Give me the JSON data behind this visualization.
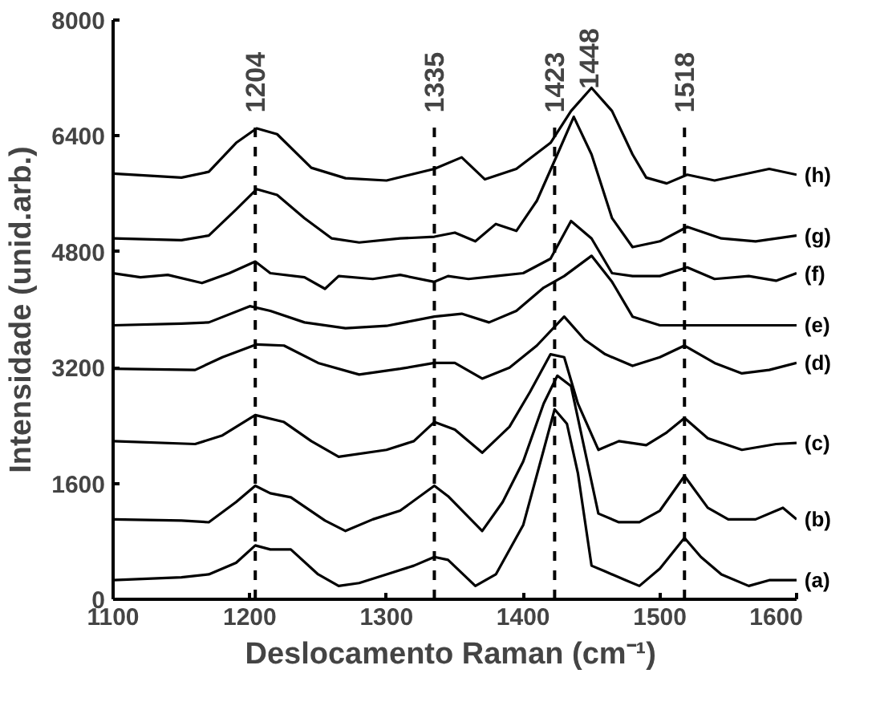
{
  "chart_data": {
    "type": "line",
    "xlabel": "Deslocamento Raman  (cm⁻¹)",
    "ylabel": "Intensidade (unid.arb.)",
    "xlim": [
      1100,
      1600
    ],
    "ylim": [
      0,
      8000
    ],
    "xticks": [
      1100,
      1200,
      1300,
      1400,
      1500,
      1600
    ],
    "yticks": [
      0,
      1600,
      3200,
      4800,
      6400,
      8000
    ],
    "grid": false,
    "line_style": "solid",
    "series": [
      {
        "name": "(a)",
        "color": "#000000",
        "x": [
          1100,
          1150,
          1170,
          1190,
          1204,
          1215,
          1230,
          1250,
          1265,
          1280,
          1300,
          1320,
          1335,
          1345,
          1365,
          1380,
          1400,
          1415,
          1423,
          1432,
          1440,
          1450,
          1460,
          1475,
          1485,
          1500,
          1518,
          1530,
          1545,
          1565,
          1580,
          1600
        ],
        "values": [
          264,
          304,
          344,
          504,
          744,
          688,
          688,
          344,
          184,
          224,
          344,
          464,
          584,
          544,
          184,
          344,
          1024,
          2064,
          2624,
          2424,
          1744,
          464,
          384,
          264,
          184,
          424,
          848,
          584,
          344,
          184,
          264,
          264
        ]
      },
      {
        "name": "(b)",
        "color": "#000000",
        "x": [
          1100,
          1150,
          1170,
          1190,
          1204,
          1215,
          1230,
          1255,
          1270,
          1290,
          1310,
          1335,
          1345,
          1370,
          1385,
          1400,
          1415,
          1425,
          1435,
          1445,
          1455,
          1470,
          1485,
          1500,
          1518,
          1535,
          1550,
          1570,
          1590,
          1600
        ],
        "values": [
          1104,
          1088,
          1064,
          1344,
          1568,
          1464,
          1408,
          1088,
          944,
          1104,
          1224,
          1568,
          1424,
          944,
          1344,
          1904,
          2704,
          3088,
          2944,
          2064,
          1184,
          1064,
          1064,
          1224,
          1704,
          1264,
          1104,
          1104,
          1264,
          1104
        ]
      },
      {
        "name": "(c)",
        "color": "#000000",
        "x": [
          1100,
          1160,
          1180,
          1204,
          1225,
          1245,
          1265,
          1300,
          1320,
          1335,
          1350,
          1370,
          1390,
          1405,
          1420,
          1430,
          1440,
          1455,
          1470,
          1490,
          1505,
          1518,
          1535,
          1560,
          1585,
          1600
        ],
        "values": [
          2184,
          2144,
          2264,
          2544,
          2448,
          2184,
          1968,
          2064,
          2184,
          2448,
          2344,
          2024,
          2384,
          2864,
          3384,
          3344,
          2704,
          2064,
          2184,
          2128,
          2304,
          2504,
          2224,
          2064,
          2144,
          2160
        ]
      },
      {
        "name": "(d)",
        "color": "#000000",
        "x": [
          1100,
          1160,
          1180,
          1205,
          1225,
          1250,
          1280,
          1310,
          1335,
          1350,
          1370,
          1390,
          1410,
          1430,
          1445,
          1460,
          1480,
          1500,
          1518,
          1540,
          1560,
          1580,
          1600
        ],
        "values": [
          3184,
          3168,
          3344,
          3520,
          3504,
          3264,
          3104,
          3184,
          3264,
          3264,
          3048,
          3200,
          3504,
          3904,
          3584,
          3384,
          3224,
          3344,
          3504,
          3264,
          3120,
          3168,
          3264
        ]
      },
      {
        "name": "(e)",
        "color": "#000000",
        "x": [
          1100,
          1150,
          1170,
          1200,
          1215,
          1240,
          1270,
          1300,
          1335,
          1355,
          1375,
          1395,
          1415,
          1430,
          1450,
          1465,
          1480,
          1500,
          1520,
          1560,
          1600
        ],
        "values": [
          3784,
          3808,
          3824,
          4048,
          3984,
          3824,
          3744,
          3776,
          3904,
          3944,
          3824,
          3984,
          4304,
          4464,
          4744,
          4384,
          3904,
          3784,
          3784,
          3784,
          3784
        ]
      },
      {
        "name": "(f)",
        "color": "#000000",
        "x": [
          1100,
          1120,
          1140,
          1165,
          1185,
          1204,
          1215,
          1240,
          1255,
          1265,
          1290,
          1310,
          1335,
          1345,
          1360,
          1380,
          1400,
          1420,
          1435,
          1450,
          1465,
          1480,
          1500,
          1520,
          1540,
          1565,
          1585,
          1600
        ],
        "values": [
          4504,
          4448,
          4480,
          4368,
          4504,
          4664,
          4504,
          4448,
          4288,
          4464,
          4424,
          4480,
          4384,
          4464,
          4424,
          4464,
          4504,
          4704,
          5224,
          4984,
          4504,
          4464,
          4464,
          4584,
          4424,
          4464,
          4400,
          4504
        ]
      },
      {
        "name": "(g)",
        "color": "#000000",
        "x": [
          1100,
          1150,
          1170,
          1190,
          1205,
          1220,
          1240,
          1260,
          1280,
          1310,
          1335,
          1350,
          1365,
          1380,
          1395,
          1410,
          1425,
          1437,
          1450,
          1465,
          1480,
          1500,
          1520,
          1545,
          1570,
          1600
        ],
        "values": [
          4984,
          4960,
          5024,
          5384,
          5664,
          5584,
          5264,
          4984,
          4928,
          4984,
          5008,
          5064,
          4944,
          5184,
          5088,
          5504,
          6144,
          6664,
          6144,
          5264,
          4864,
          4944,
          5144,
          4984,
          4944,
          5024
        ]
      },
      {
        "name": "(h)",
        "color": "#000000",
        "x": [
          1100,
          1150,
          1170,
          1190,
          1205,
          1220,
          1245,
          1270,
          1300,
          1335,
          1355,
          1372,
          1395,
          1420,
          1435,
          1450,
          1465,
          1480,
          1490,
          1505,
          1520,
          1540,
          1580,
          1600
        ],
        "values": [
          5880,
          5824,
          5904,
          6304,
          6504,
          6424,
          5960,
          5816,
          5784,
          5944,
          6104,
          5800,
          5944,
          6304,
          6744,
          7064,
          6744,
          6144,
          5824,
          5744,
          5864,
          5784,
          5944,
          5864
        ]
      }
    ],
    "ref_lines": [
      {
        "axis": "x",
        "value": 1204,
        "label": "1204",
        "color": "#000000",
        "line_style": "dashed"
      },
      {
        "axis": "x",
        "value": 1335,
        "label": "1335",
        "color": "#000000",
        "line_style": "dashed"
      },
      {
        "axis": "x",
        "value": 1423,
        "label": "1423",
        "color": "#000000",
        "line_style": "dashed"
      },
      {
        "axis": "x",
        "value": 1518,
        "label": "1518",
        "color": "#000000",
        "line_style": "dashed"
      }
    ],
    "annotations": [
      {
        "text": "1448",
        "x": 1448,
        "y": 7050
      }
    ]
  }
}
